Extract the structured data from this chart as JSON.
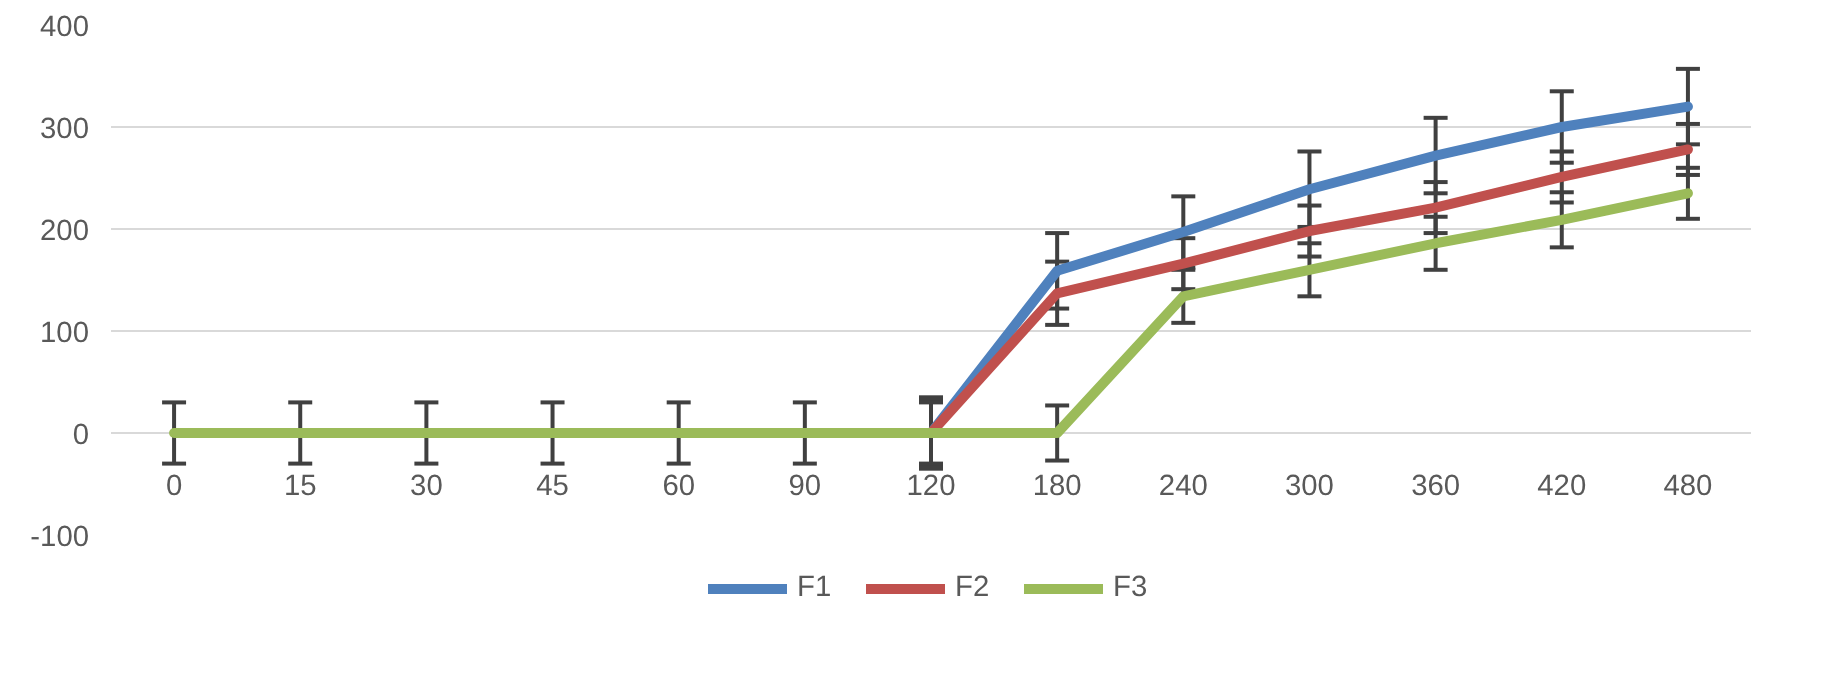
{
  "chart_data": {
    "type": "line",
    "categories": [
      "0",
      "15",
      "30",
      "45",
      "60",
      "90",
      "120",
      "180",
      "240",
      "300",
      "360",
      "420",
      "480"
    ],
    "series": [
      {
        "name": "F1",
        "color": "#4f81bd",
        "values": [
          null,
          null,
          null,
          null,
          null,
          null,
          0,
          159,
          197,
          239,
          272,
          300,
          320
        ],
        "errors": [
          null,
          null,
          null,
          null,
          null,
          null,
          35,
          37,
          35,
          37,
          37,
          35,
          37
        ]
      },
      {
        "name": "F2",
        "color": "#c0504d",
        "values": [
          null,
          null,
          null,
          null,
          null,
          null,
          0,
          137,
          166,
          198,
          221,
          251,
          278
        ],
        "errors": [
          null,
          null,
          null,
          null,
          null,
          null,
          32,
          31,
          25,
          25,
          25,
          25,
          25
        ]
      },
      {
        "name": "F3",
        "color": "#9bbb59",
        "values": [
          0,
          0,
          0,
          0,
          0,
          0,
          0,
          0,
          134,
          160,
          186,
          209,
          235
        ],
        "errors": [
          30,
          30,
          30,
          30,
          30,
          30,
          30,
          27,
          26,
          26,
          26,
          27,
          25
        ]
      }
    ],
    "ylim": [
      -100,
      400
    ],
    "yticks": [
      -100,
      0,
      100,
      200,
      300,
      400
    ],
    "grid": "y",
    "legend": "bottom",
    "marker": "none",
    "line_style": "solid"
  }
}
